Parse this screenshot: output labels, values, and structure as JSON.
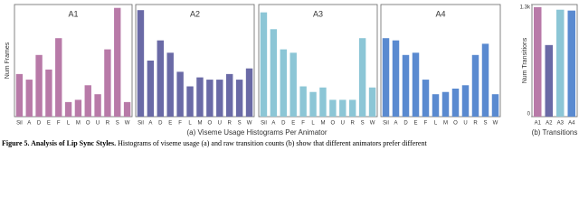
{
  "chart_data": [
    {
      "type": "bar",
      "title": "A1",
      "ylabel": "Num Frames",
      "categories": [
        "Sil",
        "A",
        "D",
        "E",
        "F",
        "L",
        "M",
        "O",
        "U",
        "R",
        "S",
        "W"
      ],
      "values": [
        38,
        33,
        55,
        42,
        70,
        13,
        15,
        28,
        20,
        60,
        97,
        13
      ],
      "color": "#b87aa8",
      "ylim": [
        0,
        100
      ]
    },
    {
      "type": "bar",
      "title": "A2",
      "categories": [
        "Sil",
        "A",
        "D",
        "E",
        "F",
        "L",
        "M",
        "O",
        "U",
        "R",
        "S",
        "W"
      ],
      "values": [
        95,
        50,
        68,
        57,
        40,
        27,
        35,
        33,
        33,
        38,
        33,
        43
      ],
      "color": "#6a6aa6",
      "ylim": [
        0,
        100
      ]
    },
    {
      "type": "bar",
      "title": "A3",
      "categories": [
        "Sil",
        "A",
        "D",
        "E",
        "F",
        "L",
        "M",
        "O",
        "U",
        "R",
        "S",
        "W"
      ],
      "values": [
        93,
        78,
        60,
        57,
        27,
        22,
        26,
        15,
        15,
        15,
        70,
        26
      ],
      "color": "#8cc6d6",
      "ylim": [
        0,
        100
      ]
    },
    {
      "type": "bar",
      "title": "A4",
      "categories": [
        "Sil",
        "A",
        "D",
        "E",
        "F",
        "L",
        "M",
        "O",
        "U",
        "R",
        "S",
        "W"
      ],
      "values": [
        70,
        68,
        55,
        57,
        33,
        20,
        22,
        25,
        28,
        55,
        65,
        20
      ],
      "color": "#5a8ad0",
      "ylim": [
        0,
        100
      ]
    },
    {
      "type": "bar",
      "ylabel": "Num Transitions",
      "xlabel": "(b) Transitions",
      "categories": [
        "A1",
        "A2",
        "A3",
        "A4"
      ],
      "values": [
        1270,
        830,
        1240,
        1230
      ],
      "colors": [
        "#b87aa8",
        "#6a6aa6",
        "#8cc6d6",
        "#5a8ad0"
      ],
      "ylim": [
        0,
        1300
      ],
      "yticks": [
        0,
        {
          "value": 1300,
          "label": "1.3k"
        }
      ]
    }
  ],
  "figure": {
    "panel_a_label": "(a) Viseme Usage Histograms Per Animator",
    "caption_label": "Figure 5. Analysis of Lip Sync Styles.",
    "caption": "Histograms of viseme usage (a) and raw transition counts (b) show that different animators prefer different"
  }
}
